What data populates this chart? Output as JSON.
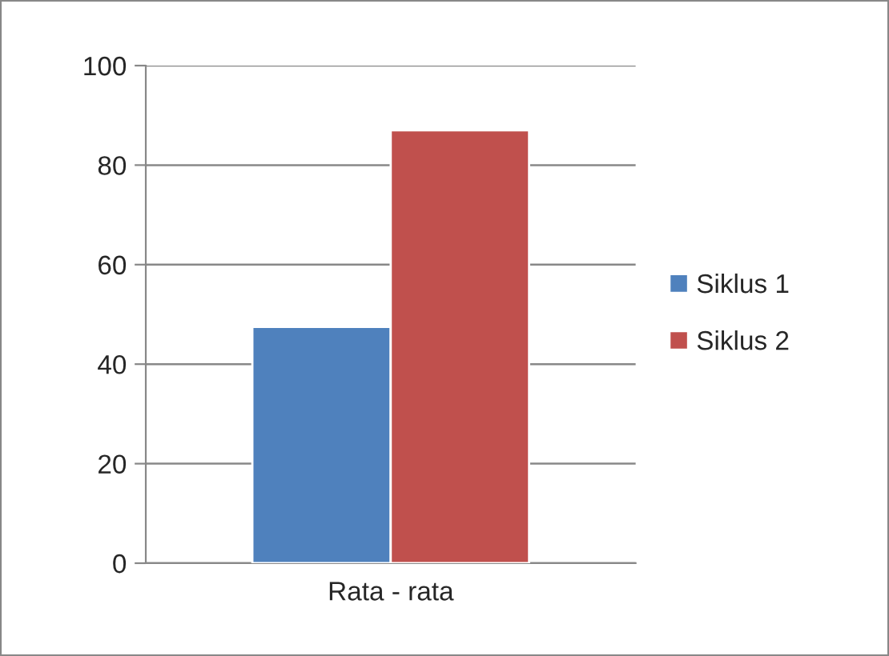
{
  "chart_data": {
    "type": "bar",
    "categories": [
      "Rata - rata"
    ],
    "series": [
      {
        "name": "Siklus 1",
        "color": "#4f81bd",
        "values": [
          47.5
        ]
      },
      {
        "name": "Siklus 2",
        "color": "#c0504d",
        "values": [
          87
        ]
      }
    ],
    "ylim": [
      0,
      100
    ],
    "yticks": [
      0,
      20,
      40,
      60,
      80,
      100
    ],
    "grid": "y",
    "legend": "right"
  }
}
